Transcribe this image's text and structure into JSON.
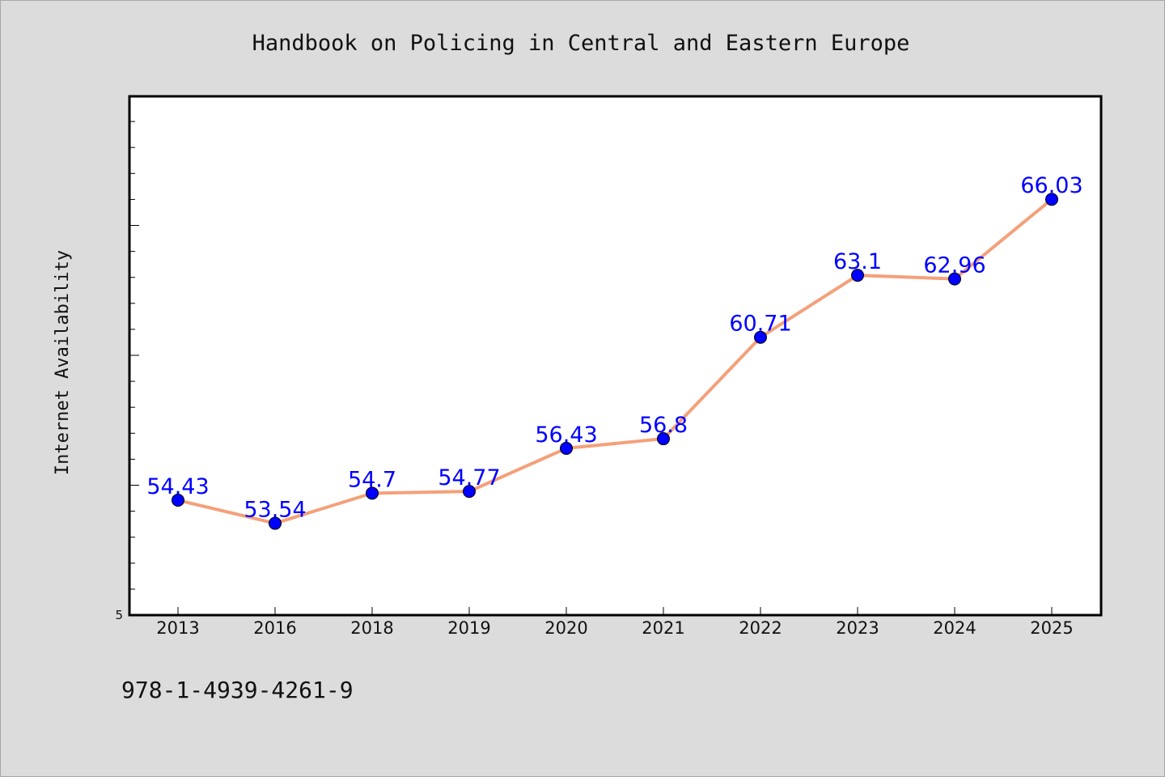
{
  "chart_data": {
    "type": "line",
    "title": "Handbook on Policing in Central and Eastern Europe",
    "xlabel": "",
    "ylabel": "Internet Availability",
    "categories": [
      "2013",
      "2016",
      "2018",
      "2019",
      "2020",
      "2021",
      "2022",
      "2023",
      "2024",
      "2025"
    ],
    "series": [
      {
        "values": [
          54.43,
          53.54,
          54.7,
          54.77,
          56.43,
          56.8,
          60.71,
          63.1,
          62.96,
          66.03
        ],
        "labels": [
          "54.43",
          "53.54",
          "54.7",
          "54.77",
          "56.43",
          "56.8",
          "60.71",
          "63.1",
          "62.96",
          "66.03"
        ],
        "line_color": "#f4a07a",
        "marker_color": "#0000ff"
      }
    ],
    "y_tick_labels": [
      "5"
    ],
    "ylim": [
      50,
      70
    ],
    "grid": false,
    "data_label_color": "#0000ff",
    "background_color": "#dcdcdc",
    "plot_background": "#ffffff"
  },
  "footer": {
    "text": "978-1-4939-4261-9"
  }
}
